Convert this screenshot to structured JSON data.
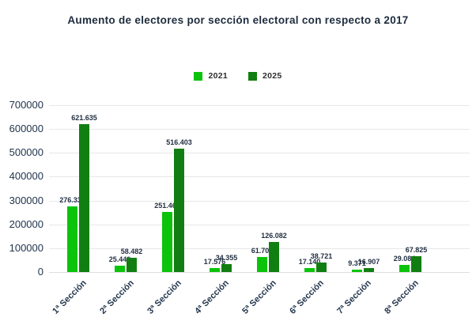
{
  "chart_data": {
    "type": "bar",
    "title": "Aumento de electores por sección electoral con respecto a 2017",
    "categories": [
      "1ª Sección",
      "2ª Sección",
      "3ª Sección",
      "4ª Sección",
      "5ª Sección",
      "6ª Sección",
      "7ª Sección",
      "8ª Sección"
    ],
    "series": [
      {
        "name": "2021",
        "color": "#0cc30c",
        "values": [
          276334,
          25449,
          251463,
          17576,
          61709,
          17140,
          9371,
          29084
        ],
        "labels": [
          "276.334",
          "25.449",
          "251.463",
          "17.576",
          "61.709",
          "17.140",
          "9.371",
          "29.084"
        ]
      },
      {
        "name": "2025",
        "color": "#117e11",
        "values": [
          621635,
          58482,
          516403,
          34355,
          126082,
          38721,
          16907,
          67825
        ],
        "labels": [
          "621.635",
          "58.482",
          "516.403",
          "34.355",
          "126.082",
          "38.721",
          "16.907",
          "67.825"
        ]
      }
    ],
    "xlabel": "",
    "ylabel": "",
    "ylim": [
      0,
      700000
    ],
    "ytick_step": 100000,
    "yticks": [
      "700000",
      "600000",
      "500000",
      "400000",
      "300000",
      "200000",
      "100000",
      "0"
    ],
    "grid": true,
    "legend_position": "top",
    "background_color": "#ffffff",
    "axis_text_color": "#22354c"
  }
}
